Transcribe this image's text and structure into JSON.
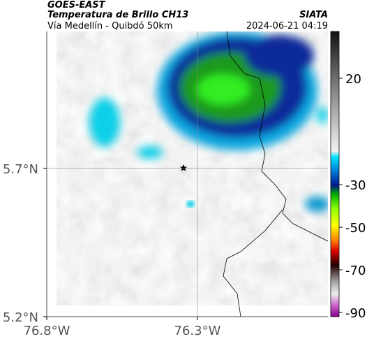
{
  "header": {
    "source": "GOES-EAST",
    "product": "Temperatura de Brillo CH13",
    "route": "Vía Medellín - Quibdó 50km",
    "agency": "SIATA",
    "datetime": "2024-06-21 04:19"
  },
  "map": {
    "xlim": [
      -76.8,
      -75.867
    ],
    "ylim": [
      5.2,
      6.162
    ],
    "xticks": [
      {
        "value": -76.8,
        "label": "76.8°W"
      },
      {
        "value": -76.3,
        "label": "76.3°W"
      }
    ],
    "yticks": [
      {
        "value": 5.7,
        "label": "5.7°N"
      },
      {
        "value": 5.2,
        "label": "5.2°N"
      }
    ],
    "grid": true
  },
  "colorbar": {
    "clim": [
      42,
      -92
    ],
    "ticks": [
      20,
      -30,
      -50,
      -70,
      -90
    ]
  }
}
